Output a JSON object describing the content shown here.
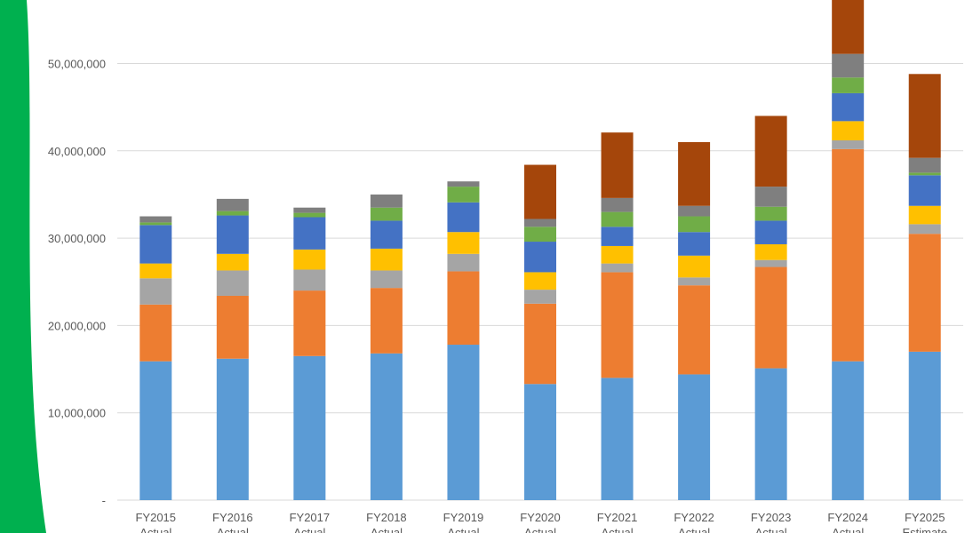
{
  "chart_data": {
    "type": "bar",
    "stacked": true,
    "categories": [
      "FY2015",
      "FY2016",
      "FY2017",
      "FY2018",
      "FY2019",
      "FY2020",
      "FY2021",
      "FY2022",
      "FY2023",
      "FY2024",
      "FY2025"
    ],
    "category_sublabels": [
      "Actual",
      "Actual",
      "Actual",
      "Actual",
      "Actual",
      "Actual",
      "Actual",
      "Actual",
      "Actual",
      "Actual",
      "Estimate"
    ],
    "y_ticks": [
      "-",
      "10,000,000",
      "20,000,000",
      "30,000,000",
      "40,000,000",
      "50,000,000"
    ],
    "ylim": [
      0,
      58000000
    ],
    "grid": true,
    "series": [
      {
        "color": "#5B9BD5",
        "values": [
          15900000,
          16200000,
          16500000,
          16800000,
          17800000,
          13300000,
          14000000,
          14400000,
          15100000,
          15900000,
          17000000
        ]
      },
      {
        "color": "#ED7D31",
        "values": [
          6500000,
          7200000,
          7500000,
          7500000,
          8400000,
          9200000,
          12100000,
          10200000,
          11600000,
          24300000,
          13500000
        ]
      },
      {
        "color": "#A5A5A5",
        "values": [
          3000000,
          2900000,
          2400000,
          2000000,
          2000000,
          1600000,
          1000000,
          900000,
          800000,
          1000000,
          1100000
        ]
      },
      {
        "color": "#FFC000",
        "values": [
          1700000,
          1900000,
          2300000,
          2500000,
          2500000,
          2000000,
          2000000,
          2500000,
          1800000,
          2200000,
          2100000
        ]
      },
      {
        "color": "#4472C4",
        "values": [
          4400000,
          4400000,
          3700000,
          3200000,
          3400000,
          3500000,
          2200000,
          2700000,
          2700000,
          3200000,
          3500000
        ]
      },
      {
        "color": "#70AD47",
        "values": [
          300000,
          500000,
          500000,
          1500000,
          1800000,
          1700000,
          1700000,
          1800000,
          1600000,
          1800000,
          300000
        ]
      },
      {
        "color": "#7F7F7F",
        "values": [
          700000,
          1400000,
          600000,
          1500000,
          600000,
          900000,
          1600000,
          1200000,
          2300000,
          2700000,
          1700000
        ]
      },
      {
        "color": "#A5460B",
        "values": [
          0,
          0,
          0,
          0,
          0,
          6200000,
          7500000,
          7300000,
          8100000,
          8000000,
          9600000
        ]
      }
    ]
  }
}
